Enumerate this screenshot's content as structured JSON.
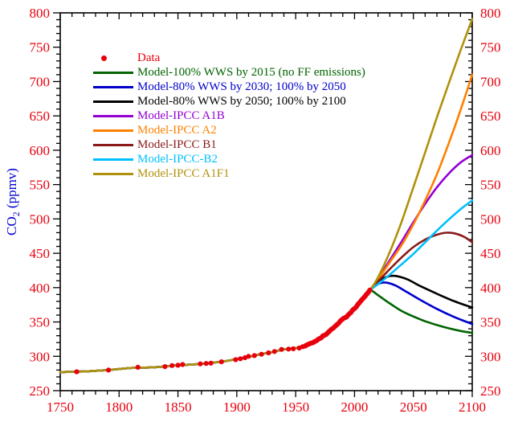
{
  "page": {
    "background": "#ffffff"
  },
  "chart_data": {
    "type": "line",
    "title": "",
    "xlabel": "",
    "ylabel": {
      "main": "CO",
      "sub": "2",
      "rest": " (ppmv)"
    },
    "ylabel_color": "#0000cc",
    "tick_label_color": "#e8000d",
    "axis_color": "#000000",
    "xlim": [
      1750,
      2100
    ],
    "ylim": [
      250,
      800
    ],
    "x_major_step": 50,
    "x_minor_step": 10,
    "y_major_step": 50,
    "y_minor_step": 10,
    "grid": false,
    "legend_position": "upper-left-inside",
    "historical": {
      "note": "shared model backbone 1750-2013",
      "x": [
        1750,
        1770,
        1790,
        1810,
        1830,
        1850,
        1870,
        1890,
        1900,
        1910,
        1920,
        1930,
        1940,
        1950,
        1958,
        1965,
        1970,
        1975,
        1980,
        1985,
        1990,
        1995,
        2000,
        2005,
        2010,
        2013
      ],
      "y": [
        277,
        278,
        280,
        283,
        284,
        287,
        289,
        293,
        296,
        299,
        303,
        306,
        310,
        312,
        315,
        320,
        326,
        331,
        339,
        346,
        354,
        361,
        370,
        380,
        390,
        396
      ]
    },
    "data_points": {
      "label": "Data",
      "color": "#e8000d",
      "x": [
        1764,
        1791,
        1816,
        1839,
        1845,
        1850,
        1854,
        1869,
        1874,
        1878,
        1887,
        1899,
        1903,
        1907,
        1910,
        1915,
        1921,
        1927,
        1932,
        1938,
        1944,
        1948,
        1953,
        1956,
        1958,
        1959,
        1960,
        1961,
        1962,
        1963,
        1964,
        1965,
        1966,
        1967,
        1968,
        1969,
        1970,
        1971,
        1972,
        1973,
        1974,
        1975,
        1976,
        1977,
        1978,
        1979,
        1980,
        1981,
        1982,
        1983,
        1984,
        1985,
        1986,
        1987,
        1988,
        1989,
        1990,
        1991,
        1992,
        1993,
        1994,
        1995,
        1996,
        1997,
        1998,
        1999,
        2000,
        2001,
        2002,
        2003,
        2004,
        2005,
        2006,
        2007,
        2008,
        2009,
        2010,
        2011,
        2012,
        2013
      ],
      "y": [
        277.5,
        280,
        284,
        285,
        286.5,
        287,
        288,
        289,
        289.5,
        290,
        292,
        295,
        296.5,
        298,
        300,
        301,
        303,
        305,
        307,
        310,
        310.5,
        311,
        312,
        314,
        315,
        316,
        316.9,
        317.6,
        318.5,
        319,
        319.6,
        320,
        321.4,
        322.2,
        323,
        324.6,
        325.7,
        326.3,
        327.5,
        329.7,
        330.2,
        331.1,
        332,
        333.8,
        335.4,
        336.8,
        338.8,
        340,
        341.1,
        342.8,
        344.4,
        346,
        347.4,
        349.2,
        351.5,
        353,
        354.4,
        355.6,
        356.4,
        357,
        358.8,
        360.8,
        362.6,
        363.7,
        366.6,
        368.3,
        369.5,
        371,
        373.2,
        375.8,
        377.5,
        379.8,
        381.9,
        383.8,
        385.6,
        387.4,
        389.9,
        391.6,
        393.8,
        396.5
      ]
    },
    "series": [
      {
        "name": "Model-100% WWS by 2015 (no FF emissions)",
        "color": "#006400",
        "x": [
          2013,
          2016,
          2020,
          2030,
          2040,
          2050,
          2060,
          2075,
          2090,
          2100
        ],
        "y": [
          396,
          394,
          389,
          377,
          366,
          358,
          351,
          343,
          337,
          334
        ]
      },
      {
        "name": "Model-80% WWS by 2030; 100% by 2050",
        "color": "#0000cc",
        "x": [
          2013,
          2018,
          2023,
          2028,
          2035,
          2045,
          2055,
          2070,
          2085,
          2100
        ],
        "y": [
          396,
          403,
          407,
          407,
          403,
          393,
          383,
          369,
          357,
          347
        ]
      },
      {
        "name": "Model-80% WWS by 2050; 100% by 2100",
        "color": "#000000",
        "x": [
          2013,
          2020,
          2028,
          2035,
          2045,
          2055,
          2070,
          2085,
          2100
        ],
        "y": [
          396,
          409,
          416,
          417,
          412,
          403,
          391,
          380,
          371
        ]
      },
      {
        "name": "Model-IPCC A1B",
        "color": "#9400d3",
        "x": [
          2013,
          2020,
          2030,
          2040,
          2050,
          2060,
          2070,
          2080,
          2090,
          2100
        ],
        "y": [
          396,
          413,
          440,
          467,
          495,
          522,
          546,
          566,
          582,
          593
        ]
      },
      {
        "name": "Model-IPCC A2",
        "color": "#ff8000",
        "x": [
          2013,
          2020,
          2030,
          2040,
          2050,
          2060,
          2070,
          2080,
          2090,
          2100
        ],
        "y": [
          396,
          412,
          437,
          462,
          492,
          527,
          565,
          610,
          658,
          710
        ]
      },
      {
        "name": "Model-IPCC B1",
        "color": "#8b1a1a",
        "x": [
          2013,
          2020,
          2030,
          2040,
          2050,
          2060,
          2070,
          2078,
          2085,
          2093,
          2100
        ],
        "y": [
          396,
          409,
          427,
          444,
          459,
          470,
          477,
          480,
          479,
          474,
          466
        ]
      },
      {
        "name": "Model-IPCC-B2",
        "color": "#00bfff",
        "x": [
          2013,
          2020,
          2030,
          2040,
          2050,
          2060,
          2070,
          2080,
          2090,
          2100
        ],
        "y": [
          396,
          405,
          419,
          434,
          449,
          466,
          483,
          499,
          514,
          527
        ]
      },
      {
        "name": "Model-IPCC A1F1",
        "color": "#b0910b",
        "x": [
          2013,
          2020,
          2030,
          2040,
          2050,
          2060,
          2070,
          2080,
          2090,
          2100
        ],
        "y": [
          396,
          415,
          452,
          496,
          546,
          597,
          648,
          697,
          745,
          791
        ]
      }
    ],
    "legend": {
      "items": [
        {
          "label": "Data",
          "color": "#e8000d",
          "marker": "dot"
        },
        {
          "label": "Model-100% WWS by 2015 (no FF emissions)",
          "color": "#006400",
          "marker": "line"
        },
        {
          "label": "Model-80% WWS by 2030; 100% by 2050",
          "color": "#0000cc",
          "marker": "line"
        },
        {
          "label": "Model-80% WWS by 2050; 100% by 2100",
          "color": "#000000",
          "marker": "line"
        },
        {
          "label": "Model-IPCC A1B",
          "color": "#9400d3",
          "marker": "line"
        },
        {
          "label": "Model-IPCC A2",
          "color": "#ff8000",
          "marker": "line"
        },
        {
          "label": "Model-IPCC B1",
          "color": "#8b1a1a",
          "marker": "line"
        },
        {
          "label": "Model-IPCC-B2",
          "color": "#00bfff",
          "marker": "line"
        },
        {
          "label": "Model-IPCC A1F1",
          "color": "#b0910b",
          "marker": "line"
        }
      ]
    }
  }
}
